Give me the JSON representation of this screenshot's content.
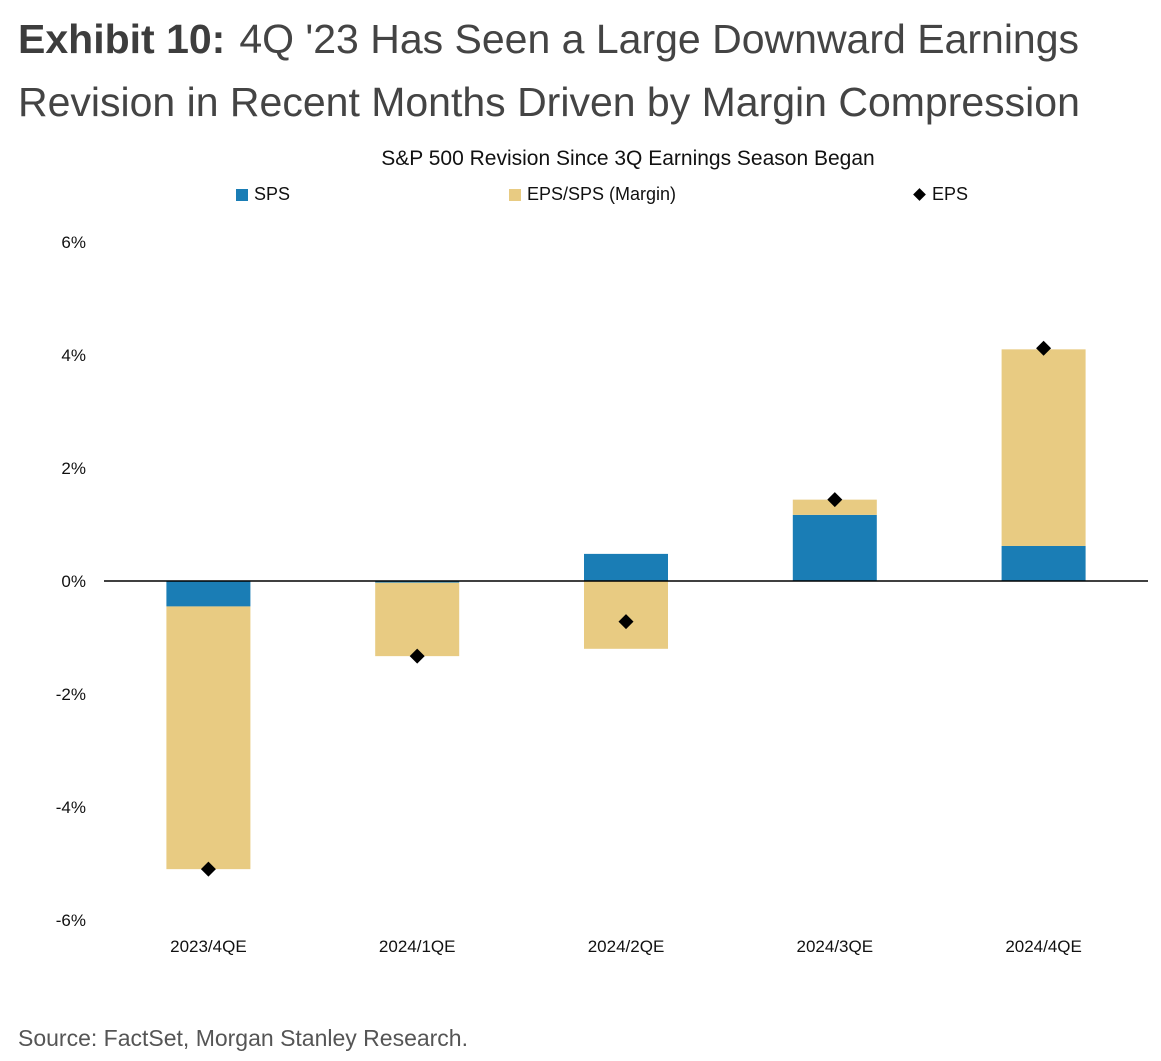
{
  "header": {
    "exhibit_label": "Exhibit 10:",
    "title": "4Q '23 Has Seen a Large Downward Earnings Revision in Recent Months Driven by Margin Compression"
  },
  "footer": {
    "source": "Source: FactSet, Morgan Stanley Research."
  },
  "colors": {
    "sps": "#1a7db5",
    "margin": "#e8cb82",
    "eps": "#000000",
    "axis": "#000000"
  },
  "chart_data": {
    "type": "bar",
    "stacked": true,
    "title": "S&P 500 Revision Since 3Q Earnings Season Began",
    "categories": [
      "2023/4QE",
      "2024/1QE",
      "2024/2QE",
      "2024/3QE",
      "2024/4QE"
    ],
    "series": [
      {
        "name": "SPS",
        "kind": "bar",
        "values": [
          -0.45,
          -0.03,
          0.48,
          1.17,
          0.62
        ]
      },
      {
        "name": "EPS/SPS (Margin)",
        "kind": "bar",
        "values": [
          -4.65,
          -1.3,
          -1.2,
          0.27,
          3.48
        ]
      },
      {
        "name": "EPS",
        "kind": "marker",
        "values": [
          -5.1,
          -1.33,
          -0.72,
          1.44,
          4.12
        ]
      }
    ],
    "legend": [
      "SPS",
      "EPS/SPS (Margin)",
      "EPS"
    ],
    "legend_position": "top",
    "ylim": [
      -6,
      6
    ],
    "yticks": [
      6,
      4,
      2,
      0,
      -2,
      -4,
      -6
    ],
    "ytick_labels": [
      "6%",
      "4%",
      "2%",
      "0%",
      "-2%",
      "-4%",
      "-6%"
    ],
    "xlabel": "",
    "ylabel": "",
    "grid": false
  }
}
